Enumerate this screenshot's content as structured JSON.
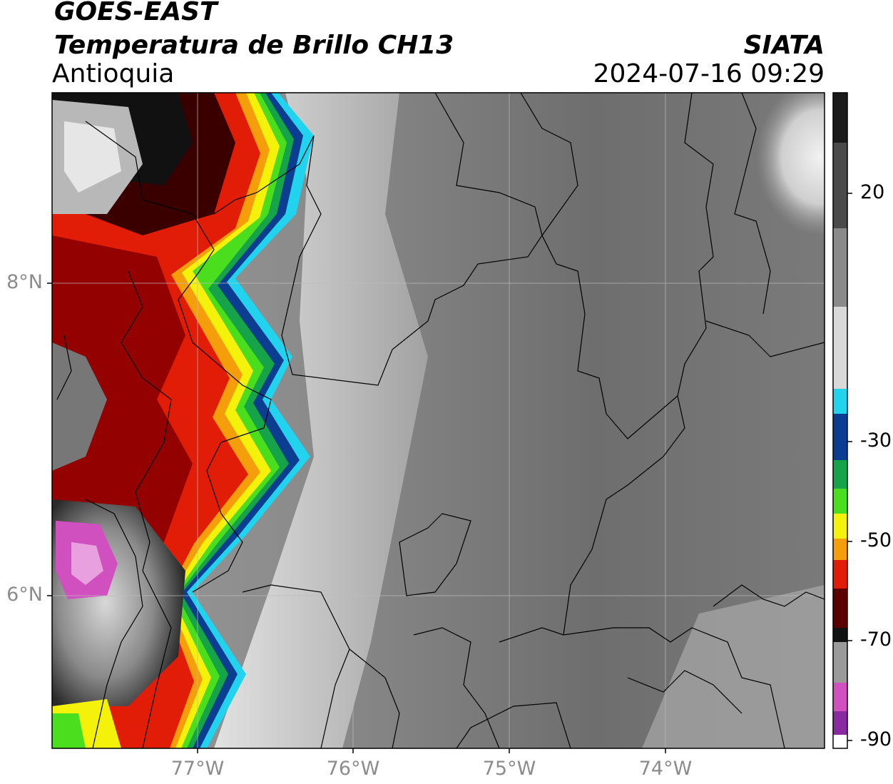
{
  "header": {
    "satellite": "GOES-EAST",
    "product": "Temperatura de Brillo CH13",
    "region": "Antioquia",
    "brand": "SIATA",
    "datetime": "2024-07-16 09:29"
  },
  "map": {
    "lat_labels": [
      "8°N",
      "6°N"
    ],
    "lon_labels": [
      "77°W",
      "76°W",
      "75°W",
      "74°W"
    ]
  },
  "colorbar": {
    "ticks": [
      "20",
      "-30",
      "-50",
      "-70",
      "-90"
    ],
    "colors": {
      "warm_black": "#111111",
      "cyan": "#22d3ee",
      "blue": "#0b3d91",
      "green": "#22c55e",
      "yellow": "#f4f10b",
      "orange": "#f59e0b",
      "red": "#e11d07",
      "dark_red": "#5a0000",
      "magenta": "#d050c0"
    }
  }
}
